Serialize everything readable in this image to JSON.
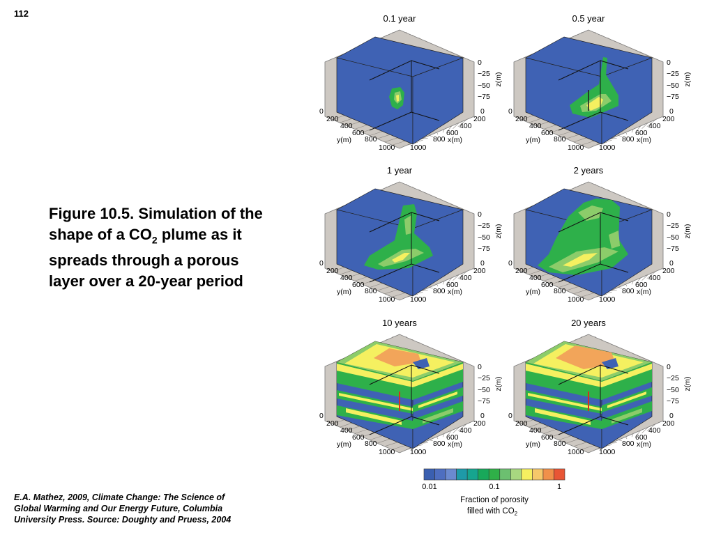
{
  "page_number": "112",
  "caption": {
    "pre": "Figure 10.5.  Simulation of the shape of a CO",
    "sub": "2",
    "post": " plume as it spreads through a porous layer over a 20-year period"
  },
  "credit": {
    "line1": "E.A. Mathez, 2009, Climate Change: The Science of",
    "line2": "Global Warming and Our Energy Future, Columbia",
    "line3": "University Press.  Source: Doughty and Pruess, 2004"
  },
  "panels": [
    {
      "title": "0.1 year",
      "stage": 0
    },
    {
      "title": "0.5 year",
      "stage": 1
    },
    {
      "title": "1 year",
      "stage": 2
    },
    {
      "title": "2 years",
      "stage": 3
    },
    {
      "title": "10 years",
      "stage": 4
    },
    {
      "title": "20 years",
      "stage": 5
    }
  ],
  "axes": {
    "z_ticks": [
      "0",
      "−25",
      "−50",
      "−75"
    ],
    "z_label": "z(m)",
    "y_ticks": [
      "0",
      "200",
      "400",
      "600",
      "800",
      "1000"
    ],
    "y_label": "y(m)",
    "x_ticks": [
      "1000",
      "800",
      "600",
      "400",
      "200",
      "0"
    ],
    "x_label": "x(m)"
  },
  "colorbar": {
    "colors": [
      "#3a5fb0",
      "#4e6ec0",
      "#6b8ad0",
      "#1e9aa8",
      "#16a58f",
      "#18a85a",
      "#2fb048",
      "#6cc070",
      "#a8d880",
      "#f5f060",
      "#f6c86a",
      "#f0904a",
      "#e85535"
    ],
    "tick_labels": [
      "0.01",
      "0.1",
      "1"
    ],
    "label_line1": "Fraction of porosity",
    "label_line2_pre": "filled with CO",
    "label_line2_sub": "2"
  },
  "colors": {
    "background_blue": "#3f62b4",
    "frame_gray": "#cdc8c2",
    "green": "#2eb04a",
    "light_green": "#8ccc6a",
    "yellow": "#f5f060",
    "orange": "#f2a55a"
  }
}
